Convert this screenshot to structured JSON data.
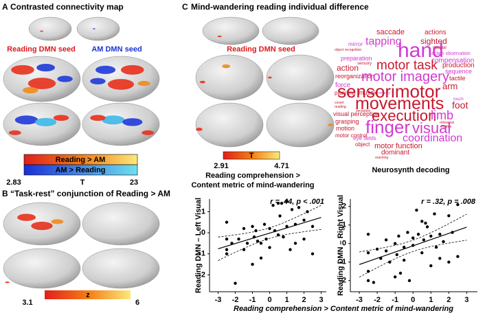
{
  "panel_a": {
    "label": "A",
    "title": "Contrasted connectivity map",
    "seed_left": "Reading DMN seed",
    "seed_right": "AM DMN seed",
    "colorbar": {
      "positive": "Reading > AM",
      "negative": "AM > Reading",
      "min": 2.83,
      "stat": "T",
      "max": 23
    }
  },
  "panel_b": {
    "label": "B",
    "title": "“Task-rest” conjunction of Reading > AM",
    "colorbar": {
      "min": 3.1,
      "stat": "z",
      "max": 6
    }
  },
  "panel_c": {
    "label": "C",
    "title": "Mind-wandering reading individual difference",
    "seed": "Reading DMN seed",
    "colorbar": {
      "min": 2.91,
      "stat": "T",
      "max": 4.71
    },
    "contrast": [
      "Reading comprehension >",
      "Content metric of mind-wandering"
    ],
    "word_cloud": {
      "words": [
        "saccade",
        "actions",
        "tapping",
        "sighted",
        "mirror",
        "object recognition",
        "hand",
        "manual",
        "action observation",
        "preparation",
        "compensation",
        "sensory",
        "action",
        "motor task",
        "production",
        "reorganization",
        "sequence",
        "force",
        "motor imagery",
        "tactile",
        "planning",
        "muscle",
        "velocity",
        "arm",
        "touch",
        "sensorimotor",
        "covert",
        "reading",
        "movements",
        "foot",
        "visual perception",
        "execution",
        "limb",
        "grasping",
        "sensation",
        "rehearsal",
        "finger",
        "visual",
        "motion",
        "rhythm",
        "motor control",
        "eye fields",
        "coordination",
        "object",
        "motor function",
        "dominant",
        "reaching"
      ],
      "caption": "Neurosynth decoding"
    },
    "scatter_xlabel": "Reading comprehension > Content metric of mind-wandering"
  },
  "chart_data": [
    {
      "type": "scatter",
      "ylabel": "Reading DMN – Left Visual",
      "annotation": "r = .44, p < .001",
      "color": "#000000",
      "x": [
        -2.5,
        -2.5,
        -2.5,
        -2.5,
        -2.2,
        -2,
        -1.8,
        -1.5,
        -1.5,
        -1.3,
        -1,
        -1,
        -0.9,
        -0.8,
        -0.5,
        -0.5,
        -0.3,
        -0.2,
        0,
        0,
        0.2,
        0.3,
        0.5,
        0.5,
        0.6,
        0.8,
        1,
        1,
        1.2,
        1.3,
        1.5,
        1.5,
        1.7,
        2,
        2,
        2.2,
        2.5,
        2.5,
        0.7,
        -0.7
      ],
      "values": [
        0.5,
        -0.3,
        -0.8,
        -1,
        -0.5,
        -2.4,
        -0.3,
        0.2,
        -0.8,
        -0.5,
        0.3,
        -1.5,
        -0.2,
        0.1,
        -0.5,
        -1.2,
        0.4,
        -0.3,
        0.2,
        -0.7,
        1.3,
        0.1,
        1.4,
        -0.1,
        0.8,
        -0.2,
        1.5,
        0.3,
        -0.8,
        1.1,
        0.4,
        -0.5,
        1.2,
        0.6,
        -0.3,
        1,
        0.3,
        -1,
        1.4,
        -0.4
      ],
      "xlim": [
        -3.5,
        3.3
      ],
      "ylim": [
        -2.8,
        1.6
      ],
      "xticks": [
        -3,
        -2,
        -1,
        0,
        1,
        2,
        3
      ],
      "yticks": [
        -2,
        -1,
        0,
        1
      ]
    },
    {
      "type": "scatter",
      "ylabel": "Reading DMN – Right Visual",
      "annotation": "r = .32, p = .008",
      "color": "#000000",
      "x": [
        -2.5,
        -2.5,
        -2.5,
        -2.5,
        -2.2,
        -2,
        -1.8,
        -1.5,
        -1.5,
        -1.3,
        -1,
        -1,
        -0.9,
        -0.8,
        -0.5,
        -0.5,
        -0.3,
        -0.2,
        0,
        0,
        0.2,
        0.3,
        0.5,
        0.5,
        0.6,
        0.8,
        1,
        1,
        1.2,
        1.3,
        1.5,
        1.5,
        1.7,
        2,
        2,
        2.2,
        2.5,
        2.5,
        0.7,
        -0.7
      ],
      "values": [
        -0.5,
        -1.5,
        -2,
        0.5,
        -2.1,
        -0.3,
        -0.8,
        0.2,
        -0.4,
        -1,
        0,
        -1.8,
        -0.6,
        0.4,
        -0.2,
        -0.9,
        0.6,
        -2,
        0.3,
        -0.1,
        1.8,
        0.5,
        1.2,
        -0.5,
        0.2,
        0.9,
        0.4,
        -1.2,
        1.6,
        -0.2,
        0.5,
        -0.8,
        0.1,
        1.5,
        -1,
        0.6,
        2.1,
        -0.7,
        1.1,
        -1.6
      ],
      "xlim": [
        -3.5,
        3.6
      ],
      "ylim": [
        -2.6,
        2.4
      ],
      "xticks": [
        -3,
        -2,
        -1,
        0,
        1,
        2,
        3
      ],
      "yticks": [
        -2,
        -1,
        0,
        1,
        2
      ]
    }
  ]
}
